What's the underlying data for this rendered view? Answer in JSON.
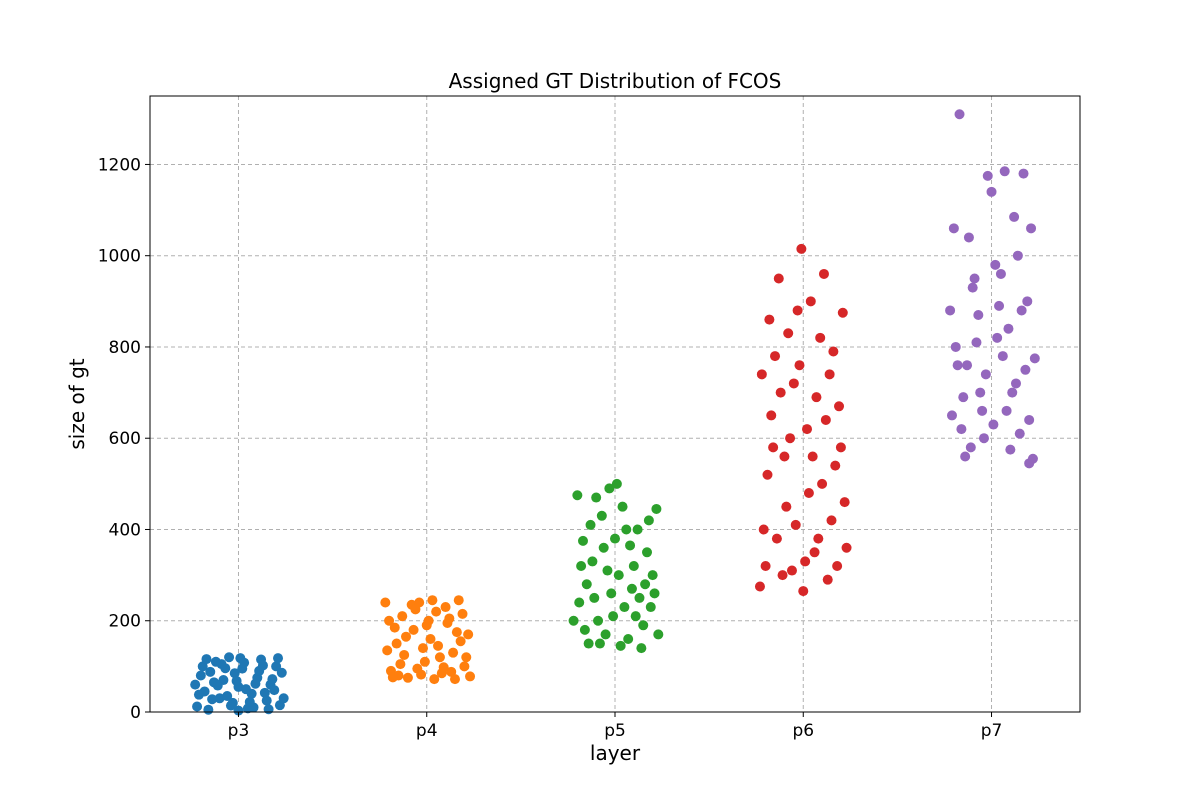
{
  "chart_data": {
    "type": "scatter",
    "title": "Assigned GT Distribution of FCOS",
    "xlabel": "layer",
    "ylabel": "size of gt",
    "categories": [
      "p3",
      "p4",
      "p5",
      "p6",
      "p7"
    ],
    "ylim": [
      0,
      1350
    ],
    "yticks": [
      0,
      200,
      400,
      600,
      800,
      1000,
      1200
    ],
    "grid": true,
    "legend": "none",
    "series": [
      {
        "category": "p3",
        "color": "#1f77b4",
        "points": [
          [
            -0.22,
            12
          ],
          [
            -0.18,
            45
          ],
          [
            -0.15,
            88
          ],
          [
            -0.12,
            110
          ],
          [
            -0.1,
            30
          ],
          [
            -0.08,
            70
          ],
          [
            -0.05,
            120
          ],
          [
            -0.03,
            20
          ],
          [
            0,
            55
          ],
          [
            0.02,
            95
          ],
          [
            0.05,
            8
          ],
          [
            0.07,
            40
          ],
          [
            0.1,
            75
          ],
          [
            0.12,
            115
          ],
          [
            0.15,
            25
          ],
          [
            0.17,
            60
          ],
          [
            0.2,
            100
          ],
          [
            0.22,
            15
          ],
          [
            -0.2,
            80
          ],
          [
            -0.16,
            5
          ],
          [
            -0.13,
            65
          ],
          [
            -0.09,
            105
          ],
          [
            -0.06,
            35
          ],
          [
            -0.02,
            85
          ],
          [
            0.01,
            118
          ],
          [
            0.04,
            50
          ],
          [
            0.08,
            10
          ],
          [
            0.11,
            90
          ],
          [
            0.14,
            42
          ],
          [
            0.18,
            72
          ],
          [
            0.21,
            118
          ],
          [
            -0.19,
            100
          ],
          [
            -0.14,
            28
          ],
          [
            -0.11,
            58
          ],
          [
            -0.07,
            96
          ],
          [
            -0.04,
            14
          ],
          [
            -0.01,
            68
          ],
          [
            0.03,
            108
          ],
          [
            0.06,
            22
          ],
          [
            0.09,
            62
          ],
          [
            0.13,
            102
          ],
          [
            0.16,
            6
          ],
          [
            0.19,
            48
          ],
          [
            0.23,
            86
          ],
          [
            -0.21,
            38
          ],
          [
            -0.17,
            116
          ],
          [
            0.0,
            3
          ],
          [
            0.24,
            30
          ],
          [
            -0.23,
            60
          ]
        ]
      },
      {
        "category": "p4",
        "color": "#ff7f0e",
        "points": [
          [
            -0.22,
            240
          ],
          [
            -0.19,
            90
          ],
          [
            -0.16,
            150
          ],
          [
            -0.13,
            210
          ],
          [
            -0.1,
            75
          ],
          [
            -0.07,
            180
          ],
          [
            -0.04,
            240
          ],
          [
            -0.01,
            110
          ],
          [
            0.02,
            160
          ],
          [
            0.05,
            220
          ],
          [
            0.08,
            85
          ],
          [
            0.11,
            195
          ],
          [
            0.14,
            130
          ],
          [
            0.17,
            245
          ],
          [
            0.2,
            100
          ],
          [
            0.22,
            170
          ],
          [
            -0.2,
            200
          ],
          [
            -0.15,
            80
          ],
          [
            -0.12,
            125
          ],
          [
            -0.08,
            235
          ],
          [
            -0.05,
            95
          ],
          [
            -0.02,
            140
          ],
          [
            0.01,
            200
          ],
          [
            0.04,
            72
          ],
          [
            0.07,
            120
          ],
          [
            0.1,
            230
          ],
          [
            0.13,
            88
          ],
          [
            0.16,
            175
          ],
          [
            0.19,
            215
          ],
          [
            0.23,
            78
          ],
          [
            -0.21,
            135
          ],
          [
            -0.17,
            185
          ],
          [
            -0.14,
            105
          ],
          [
            -0.11,
            165
          ],
          [
            -0.06,
            225
          ],
          [
            -0.03,
            82
          ],
          [
            0,
            190
          ],
          [
            0.03,
            245
          ],
          [
            0.06,
            145
          ],
          [
            0.09,
            98
          ],
          [
            0.12,
            205
          ],
          [
            0.15,
            72
          ],
          [
            0.18,
            155
          ],
          [
            0.21,
            120
          ],
          [
            -0.18,
            76
          ]
        ]
      },
      {
        "category": "p5",
        "color": "#2ca02c",
        "points": [
          [
            -0.2,
            475
          ],
          [
            -0.18,
            320
          ],
          [
            -0.16,
            180
          ],
          [
            -0.13,
            410
          ],
          [
            -0.11,
            250
          ],
          [
            -0.08,
            150
          ],
          [
            -0.06,
            360
          ],
          [
            -0.03,
            490
          ],
          [
            -0.01,
            210
          ],
          [
            0.02,
            300
          ],
          [
            0.04,
            450
          ],
          [
            0.07,
            160
          ],
          [
            0.09,
            270
          ],
          [
            0.12,
            400
          ],
          [
            0.14,
            140
          ],
          [
            0.17,
            350
          ],
          [
            0.19,
            230
          ],
          [
            0.22,
            445
          ],
          [
            -0.22,
            200
          ],
          [
            -0.15,
            280
          ],
          [
            -0.1,
            470
          ],
          [
            -0.05,
            170
          ],
          [
            0,
            380
          ],
          [
            0.05,
            230
          ],
          [
            0.1,
            320
          ],
          [
            0.15,
            190
          ],
          [
            0.2,
            300
          ],
          [
            -0.19,
            240
          ],
          [
            -0.12,
            330
          ],
          [
            -0.07,
            430
          ],
          [
            -0.02,
            260
          ],
          [
            0.03,
            145
          ],
          [
            0.08,
            365
          ],
          [
            0.13,
            250
          ],
          [
            0.18,
            420
          ],
          [
            0.23,
            170
          ],
          [
            -0.17,
            375
          ],
          [
            -0.09,
            200
          ],
          [
            0.01,
            500
          ],
          [
            0.11,
            210
          ],
          [
            0.21,
            260
          ],
          [
            -0.14,
            150
          ],
          [
            -0.04,
            310
          ],
          [
            0.06,
            400
          ],
          [
            0.16,
            280
          ]
        ]
      },
      {
        "category": "p6",
        "color": "#d62728",
        "points": [
          [
            -0.23,
            275
          ],
          [
            -0.21,
            400
          ],
          [
            -0.19,
            520
          ],
          [
            -0.17,
            650
          ],
          [
            -0.15,
            780
          ],
          [
            -0.13,
            950
          ],
          [
            -0.11,
            300
          ],
          [
            -0.09,
            450
          ],
          [
            -0.07,
            600
          ],
          [
            -0.05,
            720
          ],
          [
            -0.03,
            880
          ],
          [
            -0.01,
            1015
          ],
          [
            0.01,
            330
          ],
          [
            0.03,
            480
          ],
          [
            0.05,
            560
          ],
          [
            0.07,
            690
          ],
          [
            0.09,
            820
          ],
          [
            0.11,
            960
          ],
          [
            0.13,
            290
          ],
          [
            0.15,
            420
          ],
          [
            0.17,
            540
          ],
          [
            0.19,
            670
          ],
          [
            0.21,
            875
          ],
          [
            0.23,
            360
          ],
          [
            -0.22,
            740
          ],
          [
            -0.18,
            860
          ],
          [
            -0.14,
            380
          ],
          [
            -0.1,
            560
          ],
          [
            -0.06,
            310
          ],
          [
            -0.02,
            760
          ],
          [
            0.02,
            620
          ],
          [
            0.06,
            350
          ],
          [
            0.1,
            500
          ],
          [
            0.14,
            740
          ],
          [
            0.18,
            320
          ],
          [
            0.22,
            460
          ],
          [
            -0.2,
            320
          ],
          [
            -0.16,
            580
          ],
          [
            -0.12,
            700
          ],
          [
            -0.08,
            830
          ],
          [
            -0.04,
            410
          ],
          [
            0,
            265
          ],
          [
            0.04,
            900
          ],
          [
            0.08,
            380
          ],
          [
            0.12,
            640
          ],
          [
            0.16,
            790
          ],
          [
            0.2,
            580
          ]
        ]
      },
      {
        "category": "p7",
        "color": "#9467bd",
        "points": [
          [
            -0.17,
            1310
          ],
          [
            -0.2,
            1060
          ],
          [
            -0.22,
            880
          ],
          [
            -0.18,
            760
          ],
          [
            -0.16,
            620
          ],
          [
            -0.14,
            560
          ],
          [
            -0.12,
            1040
          ],
          [
            -0.1,
            930
          ],
          [
            -0.08,
            810
          ],
          [
            -0.06,
            700
          ],
          [
            -0.04,
            600
          ],
          [
            -0.02,
            1175
          ],
          [
            0,
            1140
          ],
          [
            0.02,
            980
          ],
          [
            0.04,
            890
          ],
          [
            0.06,
            780
          ],
          [
            0.08,
            660
          ],
          [
            0.1,
            575
          ],
          [
            0.12,
            1085
          ],
          [
            0.14,
            1000
          ],
          [
            0.16,
            880
          ],
          [
            0.18,
            750
          ],
          [
            0.2,
            640
          ],
          [
            0.22,
            555
          ],
          [
            0.17,
            1180
          ],
          [
            0.21,
            1060
          ],
          [
            -0.19,
            800
          ],
          [
            -0.15,
            690
          ],
          [
            -0.11,
            580
          ],
          [
            -0.07,
            870
          ],
          [
            -0.03,
            740
          ],
          [
            0.01,
            630
          ],
          [
            0.05,
            960
          ],
          [
            0.09,
            840
          ],
          [
            0.13,
            720
          ],
          [
            0.15,
            610
          ],
          [
            0.19,
            900
          ],
          [
            0.23,
            775
          ],
          [
            -0.21,
            650
          ],
          [
            -0.13,
            760
          ],
          [
            -0.05,
            660
          ],
          [
            0.03,
            820
          ],
          [
            0.11,
            700
          ],
          [
            0.07,
            1185
          ],
          [
            -0.09,
            950
          ],
          [
            0.2,
            545
          ]
        ]
      }
    ]
  }
}
